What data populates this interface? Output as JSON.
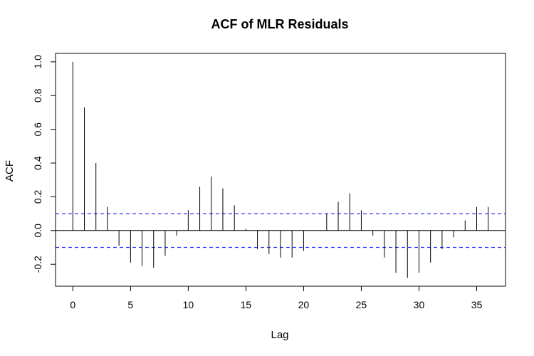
{
  "chart_data": {
    "type": "bar",
    "title": "ACF of MLR Residuals",
    "xlabel": "Lag",
    "ylabel": "ACF",
    "xlim": [
      -1.5,
      37.5
    ],
    "ylim": [
      -0.33,
      1.05
    ],
    "x_ticks": [
      0,
      5,
      10,
      15,
      20,
      25,
      30,
      35
    ],
    "y_ticks": [
      -0.2,
      0.0,
      0.2,
      0.4,
      0.6,
      0.8,
      1.0
    ],
    "y_tick_labels": [
      "-0.2",
      "0.0",
      "0.2",
      "0.4",
      "0.6",
      "0.8",
      "1.0"
    ],
    "confidence_bound": 0.1,
    "grid": false,
    "colors": {
      "bars": "#000000",
      "confidence": "#3333ff"
    },
    "lags": [
      0,
      1,
      2,
      3,
      4,
      5,
      6,
      7,
      8,
      9,
      10,
      11,
      12,
      13,
      14,
      15,
      16,
      17,
      18,
      19,
      20,
      21,
      22,
      23,
      24,
      25,
      26,
      27,
      28,
      29,
      30,
      31,
      32,
      33,
      34,
      35,
      36
    ],
    "values": [
      1.0,
      0.73,
      0.4,
      0.14,
      -0.09,
      -0.19,
      -0.21,
      -0.22,
      -0.15,
      -0.03,
      0.12,
      0.26,
      0.32,
      0.25,
      0.15,
      0.01,
      -0.11,
      -0.14,
      -0.16,
      -0.16,
      -0.12,
      0.0,
      0.1,
      0.17,
      0.22,
      0.12,
      -0.03,
      -0.16,
      -0.25,
      -0.28,
      -0.25,
      -0.19,
      -0.11,
      -0.04,
      0.06,
      0.14,
      0.14
    ]
  }
}
